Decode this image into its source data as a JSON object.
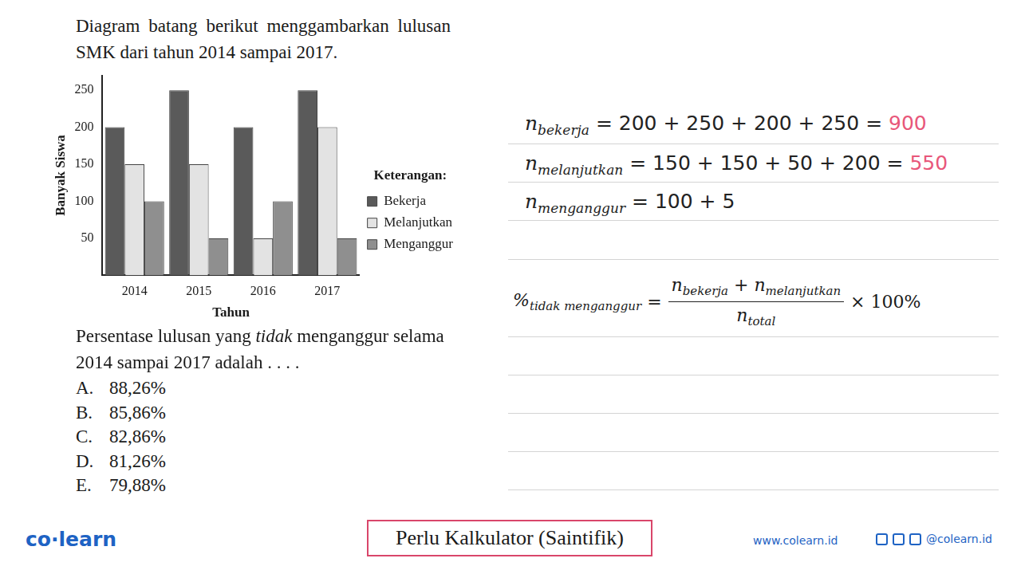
{
  "header": {
    "text": "Diagram batang berikut menggambarkan lulusan SMK dari tahun 2014 sampai 2017."
  },
  "chart_data": {
    "type": "bar",
    "categories": [
      "2014",
      "2015",
      "2016",
      "2017"
    ],
    "series": [
      {
        "name": "Bekerja",
        "color": "#5a5a5a",
        "values": [
          200,
          250,
          200,
          250
        ]
      },
      {
        "name": "Melanjutkan",
        "color": "#e3e3e3",
        "values": [
          150,
          150,
          50,
          200
        ]
      },
      {
        "name": "Menganggur",
        "color": "#8f8f8f",
        "values": [
          100,
          50,
          100,
          50
        ]
      }
    ],
    "x_label": "Tahun",
    "y_label": "Banyak Siswa",
    "ylim": [
      0,
      270
    ],
    "yticks": [
      50,
      100,
      150,
      200,
      250
    ],
    "grid": false,
    "legend": "right",
    "legend_title": "Keterangan:"
  },
  "question": {
    "before": "Persentase lulusan yang ",
    "emphasis": "tidak",
    "after": " menganggur selama 2014 sampai 2017 adalah . . . .",
    "options": [
      {
        "letter": "A.",
        "text": "88,26%"
      },
      {
        "letter": "B.",
        "text": "85,86%"
      },
      {
        "letter": "C.",
        "text": "82,86%"
      },
      {
        "letter": "D.",
        "text": "81,26%"
      },
      {
        "letter": "E.",
        "text": "79,88%"
      }
    ]
  },
  "work": {
    "lines": [
      {
        "symbol": "n",
        "subscript": "bekerja",
        "expression": "= 200 + 250 + 200 + 250 =",
        "result": "900"
      },
      {
        "symbol": "n",
        "subscript": "melanjutkan",
        "expression": "= 150 + 150 + 50 + 200 =",
        "result": "550"
      },
      {
        "symbol": "n",
        "subscript": "menganggur",
        "expression": "= 100 + 5",
        "result": ""
      }
    ],
    "formula": {
      "symbol": "%",
      "subscript": "tidak menganggur",
      "equals": "=",
      "numerator": [
        {
          "symbol": "n",
          "subscript": "bekerja"
        },
        {
          "operator": "+"
        },
        {
          "symbol": "n",
          "subscript": "melanjutkan"
        }
      ],
      "denominator": {
        "symbol": "n",
        "subscript": "total"
      },
      "tail": "× 100%"
    }
  },
  "footer": {
    "logo": "co·learn",
    "center": "Perlu Kalkulator (Saintifik)",
    "website": "www.colearn.id",
    "social": "@colearn.id"
  }
}
